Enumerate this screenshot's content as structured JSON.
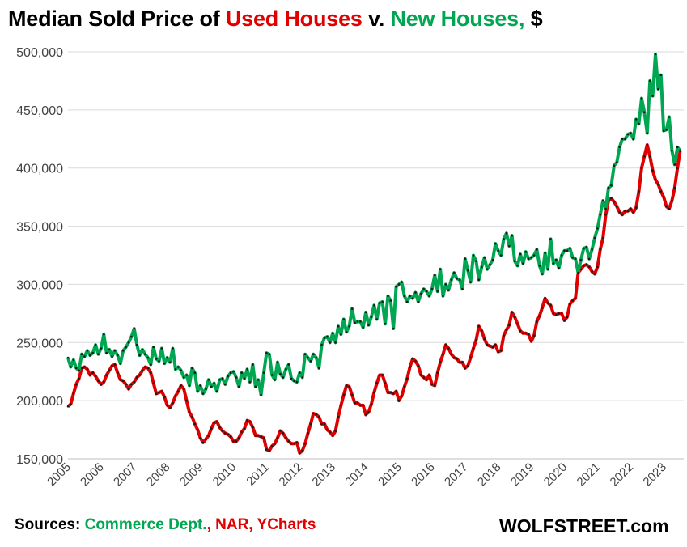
{
  "title": {
    "prefix": "Median Sold Price of ",
    "used": "Used Houses",
    "mid": " v. ",
    "new": "New Houses,",
    "suffix": " $"
  },
  "footer": {
    "sources_label": "Sources: ",
    "commerce": "Commerce Dept.",
    "sep": ", ",
    "nar": "NAR, YCharts",
    "brand": "WOLFSTREET.com"
  },
  "colors": {
    "used": "#e00000",
    "new": "#00a651",
    "grid": "#d9d9d9",
    "markers": "#1a1a1a"
  },
  "chart_data": {
    "type": "line",
    "title": "Median Sold Price of Used Houses v. New Houses, $",
    "xlabel": "",
    "ylabel": "",
    "ylim": [
      150000,
      500000
    ],
    "xlim": [
      2005,
      2023.5
    ],
    "yticks": [
      150000,
      200000,
      250000,
      300000,
      350000,
      400000,
      450000,
      500000
    ],
    "ytick_labels": [
      "150,000",
      "200,000",
      "250,000",
      "300,000",
      "350,000",
      "400,000",
      "450,000",
      "500,000"
    ],
    "xtick_labels": [
      "2005",
      "2006",
      "2007",
      "2008",
      "2009",
      "2010",
      "2011",
      "2012",
      "2013",
      "2014",
      "2015",
      "2016",
      "2017",
      "2018",
      "2019",
      "2020",
      "2021",
      "2022",
      "2023"
    ],
    "grid": true,
    "legend": "in-title",
    "frequency": "monthly",
    "start": "2005-01",
    "series": [
      {
        "name": "Used Houses",
        "color": "#e00000",
        "values": [
          195000,
          197000,
          206000,
          214000,
          219000,
          228000,
          229000,
          227000,
          222000,
          224000,
          221000,
          217000,
          214000,
          216000,
          222000,
          226000,
          230000,
          231000,
          224000,
          218000,
          217000,
          214000,
          210000,
          214000,
          216000,
          220000,
          222000,
          226000,
          229000,
          228000,
          224000,
          215000,
          206000,
          207000,
          208000,
          203000,
          196000,
          194000,
          198000,
          204000,
          208000,
          213000,
          210000,
          200000,
          190000,
          186000,
          180000,
          175000,
          168000,
          164000,
          167000,
          170000,
          176000,
          181000,
          182000,
          177000,
          174000,
          172000,
          171000,
          169000,
          165000,
          165000,
          168000,
          173000,
          176000,
          183000,
          182000,
          177000,
          170000,
          170000,
          169000,
          168000,
          158000,
          157000,
          161000,
          163000,
          168000,
          174000,
          172000,
          168000,
          165000,
          163000,
          163000,
          164000,
          155000,
          157000,
          163000,
          172000,
          180000,
          189000,
          188000,
          186000,
          180000,
          180000,
          175000,
          173000,
          170000,
          174000,
          186000,
          196000,
          205000,
          213000,
          212000,
          205000,
          198000,
          198000,
          196000,
          196000,
          188000,
          190000,
          197000,
          207000,
          215000,
          222000,
          222000,
          215000,
          207000,
          207000,
          206000,
          208000,
          200000,
          204000,
          212000,
          219000,
          229000,
          236000,
          234000,
          230000,
          222000,
          220000,
          218000,
          222000,
          214000,
          213000,
          224000,
          233000,
          240000,
          248000,
          245000,
          240000,
          237000,
          236000,
          233000,
          233000,
          228000,
          230000,
          237000,
          245000,
          252000,
          264000,
          260000,
          253000,
          248000,
          247000,
          246000,
          248000,
          242000,
          243000,
          256000,
          261000,
          265000,
          276000,
          272000,
          266000,
          260000,
          258000,
          258000,
          257000,
          251000,
          256000,
          268000,
          273000,
          280000,
          288000,
          284000,
          282000,
          275000,
          274000,
          275000,
          275000,
          269000,
          272000,
          283000,
          286000,
          288000,
          310000,
          313000,
          316000,
          317000,
          315000,
          311000,
          309000,
          315000,
          330000,
          340000,
          360000,
          372000,
          374000,
          371000,
          367000,
          362000,
          360000,
          363000,
          363000,
          365000,
          362000,
          366000,
          380000,
          400000,
          410000,
          420000,
          410000,
          398000,
          390000,
          386000,
          380000,
          375000,
          367000,
          365000,
          372000,
          383000,
          400000,
          415000
        ]
      },
      {
        "name": "New Houses",
        "color": "#00a651",
        "values": [
          237000,
          229000,
          235000,
          228000,
          226000,
          240000,
          238000,
          243000,
          239000,
          241000,
          248000,
          240000,
          245000,
          257000,
          241000,
          244000,
          238000,
          243000,
          239000,
          232000,
          243000,
          246000,
          250000,
          255000,
          262000,
          248000,
          239000,
          244000,
          240000,
          237000,
          231000,
          246000,
          236000,
          234000,
          245000,
          232000,
          237000,
          233000,
          245000,
          227000,
          229000,
          226000,
          220000,
          222000,
          213000,
          228000,
          224000,
          208000,
          213000,
          206000,
          210000,
          218000,
          212000,
          215000,
          208000,
          218000,
          219000,
          214000,
          221000,
          224000,
          225000,
          220000,
          212000,
          224000,
          219000,
          227000,
          216000,
          231000,
          212000,
          218000,
          205000,
          224000,
          241000,
          240000,
          222000,
          218000,
          233000,
          223000,
          220000,
          227000,
          231000,
          219000,
          217000,
          216000,
          224000,
          220000,
          240000,
          237000,
          234000,
          240000,
          237000,
          228000,
          248000,
          254000,
          255000,
          250000,
          258000,
          250000,
          264000,
          257000,
          270000,
          259000,
          264000,
          279000,
          267000,
          268000,
          268000,
          263000,
          276000,
          265000,
          272000,
          282000,
          270000,
          284000,
          285000,
          266000,
          290000,
          286000,
          262000,
          298000,
          300000,
          302000,
          290000,
          285000,
          290000,
          288000,
          293000,
          285000,
          292000,
          296000,
          294000,
          290000,
          296000,
          308000,
          294000,
          313000,
          290000,
          300000,
          295000,
          304000,
          310000,
          305000,
          304000,
          296000,
          322000,
          312000,
          302000,
          325000,
          320000,
          304000,
          315000,
          323000,
          313000,
          317000,
          321000,
          335000,
          329000,
          325000,
          339000,
          344000,
          333000,
          342000,
          320000,
          316000,
          326000,
          318000,
          328000,
          322000,
          323000,
          325000,
          330000,
          316000,
          309000,
          327000,
          313000,
          339000,
          318000,
          321000,
          314000,
          325000,
          329000,
          329000,
          331000,
          323000,
          322000,
          310000,
          321000,
          331000,
          332000,
          322000,
          330000,
          340000,
          348000,
          360000,
          372000,
          365000,
          383000,
          385000,
          402000,
          405000,
          418000,
          425000,
          425000,
          429000,
          430000,
          425000,
          442000,
          438000,
          460000,
          448000,
          430000,
          475000,
          462000,
          498000,
          468000,
          480000,
          432000,
          433000,
          444000,
          415000,
          403000,
          418000,
          415000
        ]
      }
    ]
  }
}
